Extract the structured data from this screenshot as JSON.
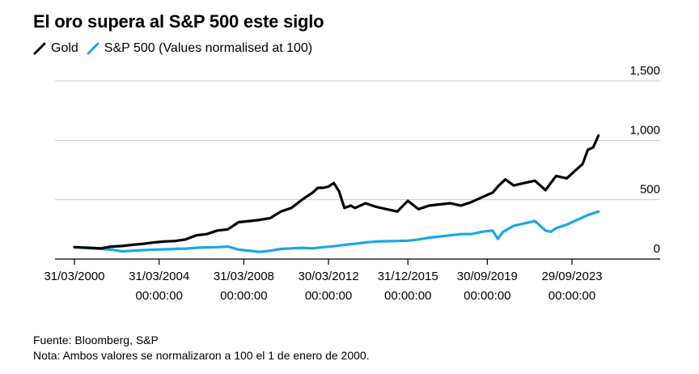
{
  "header": {
    "title": "El oro supera al S&P 500 este siglo"
  },
  "legend": {
    "gold_label": "Gold",
    "sp_label": "S&P 500 (Values normalised at 100)"
  },
  "footer": {
    "source": "Fuente: Bloomberg, S&P",
    "note": "Nota: Ambos valores se normalizaron a 100 el 1 de enero de 2000."
  },
  "colors": {
    "gold": "#000000",
    "sp500": "#1aa7e8",
    "grid": "#cccccc",
    "axis": "#000000"
  },
  "chart_data": {
    "type": "line",
    "title": "El oro supera al S&P 500 este siglo",
    "xlabel": "",
    "ylabel": "",
    "ylim": [
      0,
      1500
    ],
    "xlim": [
      2000.0,
      2025.0
    ],
    "x_axis": "time (year)",
    "yticks": [
      0,
      500,
      1000,
      1500
    ],
    "ytick_labels": [
      "0",
      "500",
      "1,000",
      "1,500"
    ],
    "xticks": [
      2000.25,
      2004.25,
      2008.25,
      2012.25,
      2016.0,
      2019.75,
      2023.75
    ],
    "xtick_labels": [
      [
        "31/03/2000"
      ],
      [
        "31/03/2004",
        "00:00:00"
      ],
      [
        "31/03/2008",
        "00:00:00"
      ],
      [
        "30/03/2012",
        "00:00:00"
      ],
      [
        "31/12/2015",
        "00:00:00"
      ],
      [
        "30/09/2019",
        "00:00:00"
      ],
      [
        "29/09/2023",
        "00:00:00"
      ]
    ],
    "grid": true,
    "legend_position": "top-left",
    "series": [
      {
        "name": "Gold",
        "color": "#000000",
        "x": [
          2000.25,
          2001.0,
          2001.5,
          2002.0,
          2002.5,
          2003.0,
          2003.5,
          2004.0,
          2004.5,
          2005.0,
          2005.5,
          2006.0,
          2006.5,
          2007.0,
          2007.5,
          2008.0,
          2008.5,
          2009.0,
          2009.5,
          2010.0,
          2010.5,
          2011.0,
          2011.5,
          2011.75,
          2012.0,
          2012.25,
          2012.5,
          2012.75,
          2013.0,
          2013.3,
          2013.5,
          2014.0,
          2014.5,
          2015.0,
          2015.5,
          2016.0,
          2016.5,
          2017.0,
          2017.5,
          2018.0,
          2018.5,
          2019.0,
          2019.5,
          2020.0,
          2020.3,
          2020.6,
          2021.0,
          2021.5,
          2022.0,
          2022.5,
          2022.75,
          2023.0,
          2023.5,
          2024.0,
          2024.25,
          2024.5,
          2024.75,
          2025.0
        ],
        "y": [
          100,
          95,
          90,
          105,
          110,
          120,
          128,
          140,
          148,
          152,
          165,
          200,
          210,
          240,
          250,
          310,
          320,
          330,
          345,
          400,
          430,
          500,
          560,
          600,
          600,
          610,
          640,
          570,
          430,
          450,
          430,
          470,
          440,
          420,
          400,
          490,
          420,
          450,
          460,
          470,
          450,
          480,
          520,
          560,
          620,
          670,
          620,
          640,
          660,
          580,
          640,
          700,
          680,
          760,
          800,
          920,
          940,
          1040
        ]
      },
      {
        "name": "S&P 500",
        "color": "#1aa7e8",
        "x": [
          2000.25,
          2001.0,
          2001.5,
          2002.0,
          2002.5,
          2003.0,
          2003.5,
          2004.0,
          2004.5,
          2005.0,
          2005.5,
          2006.0,
          2006.5,
          2007.0,
          2007.5,
          2008.0,
          2008.5,
          2009.0,
          2009.5,
          2010.0,
          2010.5,
          2011.0,
          2011.5,
          2012.0,
          2012.5,
          2013.0,
          2013.5,
          2014.0,
          2014.5,
          2015.0,
          2015.5,
          2016.0,
          2016.5,
          2017.0,
          2017.5,
          2018.0,
          2018.5,
          2019.0,
          2019.5,
          2020.0,
          2020.25,
          2020.5,
          2021.0,
          2021.5,
          2022.0,
          2022.25,
          2022.5,
          2022.75,
          2023.0,
          2023.5,
          2024.0,
          2024.5,
          2025.0
        ],
        "y": [
          100,
          90,
          85,
          80,
          65,
          70,
          75,
          80,
          82,
          85,
          88,
          95,
          98,
          100,
          105,
          80,
          70,
          60,
          70,
          85,
          90,
          95,
          90,
          100,
          108,
          120,
          128,
          140,
          148,
          150,
          152,
          155,
          165,
          180,
          190,
          200,
          210,
          210,
          230,
          240,
          170,
          230,
          280,
          300,
          320,
          280,
          240,
          230,
          260,
          290,
          330,
          370,
          400
        ]
      }
    ]
  }
}
